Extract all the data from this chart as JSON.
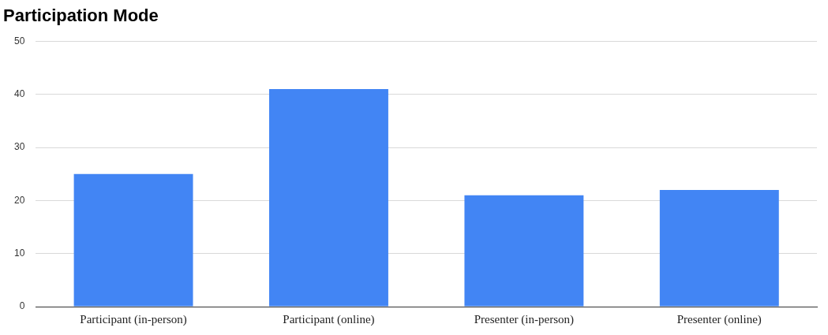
{
  "chart_data": {
    "type": "bar",
    "title": "Participation Mode",
    "categories": [
      "Participant (in-person)",
      "Participant (online)",
      "Presenter (in-person)",
      "Presenter (online)"
    ],
    "values": [
      25,
      41,
      21,
      22
    ],
    "color": "#4285f4",
    "ylim": [
      0,
      50
    ],
    "yticks": [
      0,
      10,
      20,
      30,
      40,
      50
    ],
    "grid": "y",
    "legend": false
  }
}
